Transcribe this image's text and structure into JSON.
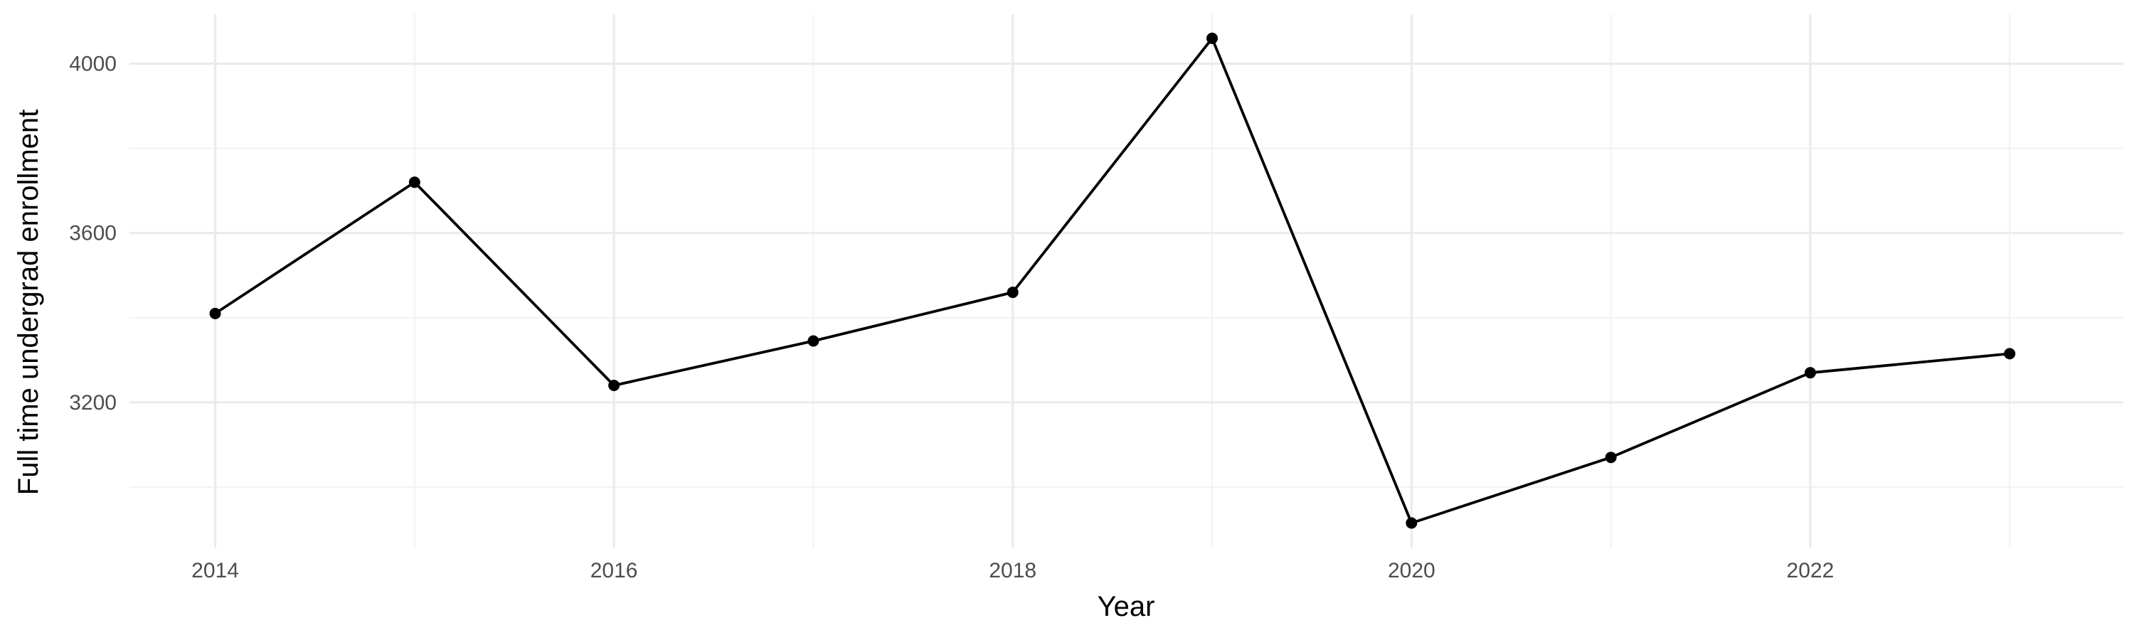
{
  "chart_data": {
    "type": "line",
    "title": "",
    "xlabel": "Year",
    "ylabel": "Full time undergrad enrollment",
    "x": [
      2014,
      2015,
      2016,
      2017,
      2018,
      2019,
      2020,
      2021,
      2022,
      2023
    ],
    "series": [
      {
        "values": [
          3410,
          3720,
          3240,
          3345,
          3460,
          4060,
          2915,
          3070,
          3270,
          3315
        ]
      }
    ],
    "x_ticks": [
      2014,
      2016,
      2018,
      2020,
      2022
    ],
    "x_tick_labels": [
      "2014",
      "2016",
      "2018",
      "2020",
      "2022"
    ],
    "y_ticks": [
      3200,
      3600,
      4000
    ],
    "y_tick_labels": [
      "3200",
      "3600",
      "4000"
    ],
    "xlim": [
      2013.57,
      2023.57
    ],
    "ylim": [
      2857,
      4117
    ],
    "grid": true,
    "legend": "none",
    "colors": {
      "line": "#000000",
      "point": "#000000",
      "major_grid": "#ebebeb",
      "minor_grid": "#f2f2f2",
      "tick_text": "#4d4d4d"
    }
  }
}
